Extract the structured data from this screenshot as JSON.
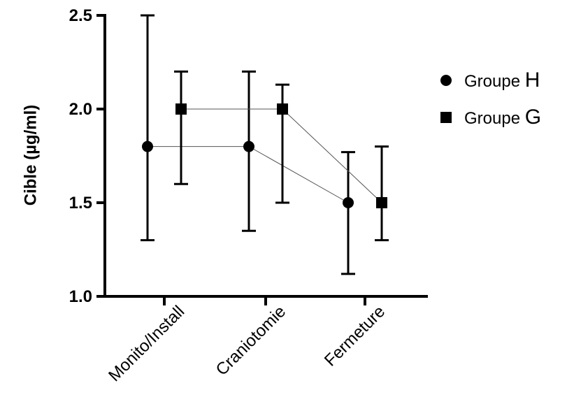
{
  "chart_data": {
    "type": "scatter",
    "ylabel": "Cible (µg/ml)",
    "xlabel": "",
    "categories": [
      "Monito/Install",
      "Craniotomie",
      "Fermeture"
    ],
    "ylim": [
      1.0,
      2.5
    ],
    "yticks": [
      "1.0",
      "1.5",
      "2.0",
      "2.5"
    ],
    "grid": false,
    "legend_placement": "top-right",
    "series": [
      {
        "name": "Groupe H",
        "name_prefix": "Groupe ",
        "name_suffix": "H",
        "marker": "circle",
        "values": [
          1.8,
          1.8,
          1.5
        ],
        "err_low": [
          1.3,
          1.35,
          1.12
        ],
        "err_high": [
          2.5,
          2.2,
          1.77
        ]
      },
      {
        "name": "Groupe G",
        "name_prefix": "Groupe ",
        "name_suffix": "G",
        "marker": "square",
        "values": [
          2.0,
          2.0,
          1.5
        ],
        "err_low": [
          1.6,
          1.5,
          1.3
        ],
        "err_high": [
          2.2,
          2.13,
          1.8
        ]
      }
    ]
  }
}
